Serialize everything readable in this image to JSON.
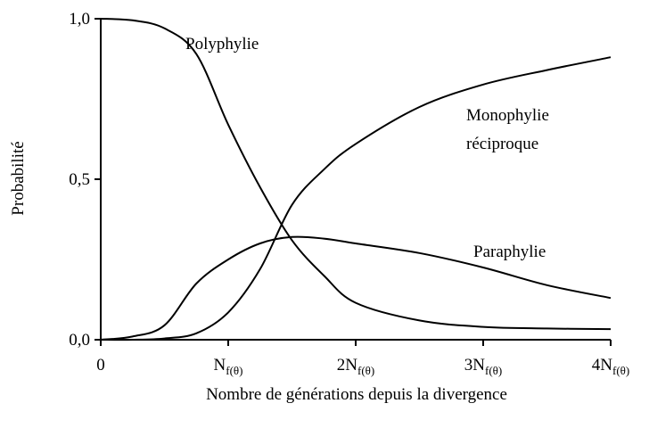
{
  "chart_data": {
    "type": "line",
    "xlabel": "Nombre de générations depuis la divergence",
    "ylabel": "Probabilité",
    "x": [
      0,
      0.25,
      0.5,
      0.75,
      1,
      1.25,
      1.5,
      1.75,
      2,
      2.5,
      3,
      3.5,
      4
    ],
    "series": [
      {
        "name": "Polyphylie",
        "color": "#000000",
        "values": [
          1.0,
          0.995,
          0.97,
          0.89,
          0.67,
          0.475,
          0.31,
          0.2,
          0.115,
          0.06,
          0.04,
          0.035,
          0.033
        ]
      },
      {
        "name": "Monophylie réciproque",
        "color": "#000000",
        "values": [
          0,
          0,
          0.004,
          0.02,
          0.085,
          0.22,
          0.42,
          0.53,
          0.61,
          0.725,
          0.795,
          0.84,
          0.88
        ]
      },
      {
        "name": "Paraphylie",
        "color": "#000000",
        "values": [
          0,
          0.01,
          0.045,
          0.175,
          0.25,
          0.3,
          0.32,
          0.315,
          0.3,
          0.27,
          0.225,
          0.17,
          0.13
        ]
      }
    ],
    "xlim": [
      0,
      4
    ],
    "ylim": [
      0,
      1
    ],
    "xticks": [
      {
        "value": 0,
        "label": "0"
      },
      {
        "value": 1,
        "label": "N",
        "subscript": "f(θ)"
      },
      {
        "value": 2,
        "label": "2N",
        "subscript": "f(θ)"
      },
      {
        "value": 3,
        "label": "3N",
        "subscript": "f(θ)"
      },
      {
        "value": 4,
        "label": "4N",
        "subscript": "f(θ)"
      }
    ],
    "yticks": [
      {
        "value": 0,
        "label": "0,0"
      },
      {
        "value": 0.5,
        "label": "0,5"
      },
      {
        "value": 1,
        "label": "1,0"
      }
    ],
    "grid": false
  }
}
